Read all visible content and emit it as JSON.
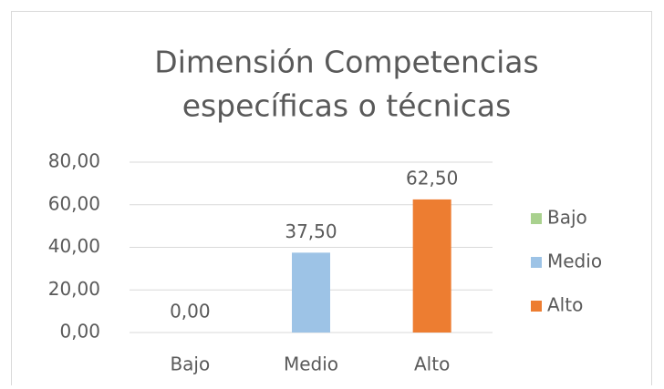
{
  "chart_data": {
    "type": "bar",
    "title": [
      "Dimensión Competencias",
      "específicas o técnicas"
    ],
    "categories": [
      "Bajo",
      "Medio",
      "Alto"
    ],
    "values": [
      0,
      37.5,
      62.5
    ],
    "value_labels": [
      "0,00",
      "37,50",
      "62,50"
    ],
    "colors": [
      "#a9d18e",
      "#9dc3e6",
      "#ed7d31"
    ],
    "ylim": [
      0,
      80
    ],
    "yticks": [
      {
        "value": 0,
        "label": "0,00"
      },
      {
        "value": 20,
        "label": "20,00"
      },
      {
        "value": 40,
        "label": "40,00"
      },
      {
        "value": 60,
        "label": "60,00"
      },
      {
        "value": 80,
        "label": "80,00"
      }
    ],
    "grid": true,
    "legend": "right"
  }
}
